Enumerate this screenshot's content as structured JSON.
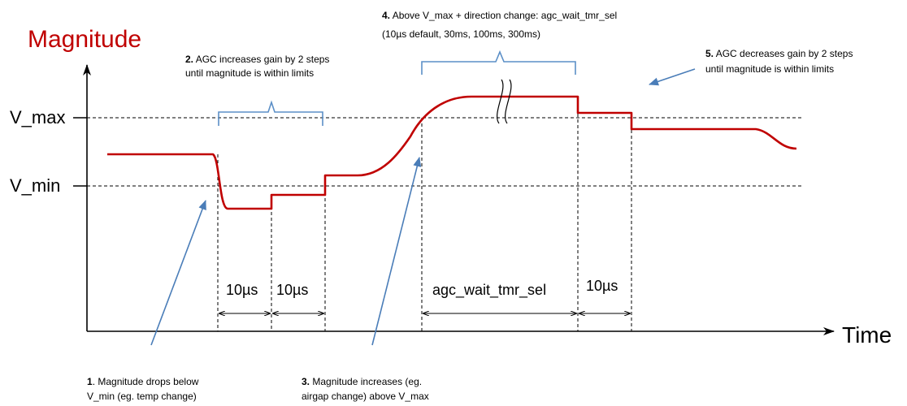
{
  "colors": {
    "signal": "#c00000",
    "brace": "#5b8fc7",
    "pointer": "#4a7db8",
    "title": "#c00000"
  },
  "axes": {
    "y_title": "Magnitude",
    "x_title": "Time",
    "vmax_label": "V_max",
    "vmin_label": "V_min"
  },
  "durations": {
    "d1": "10µs",
    "d2": "10µs",
    "d3": "agc_wait_tmr_sel",
    "d4": "10µs"
  },
  "notes": {
    "n1_num": "1",
    "n1_line1": ". Magnitude drops below",
    "n1_line2": "V_min (eg. temp change)",
    "n2_num": "2.",
    "n2_line1": " AGC increases gain by 2 steps",
    "n2_line2": "until magnitude is within limits",
    "n3_num": "3.",
    "n3_line1": " Magnitude increases (eg.",
    "n3_line2": "airgap change) above V_max",
    "n4_num": "4.",
    "n4_line1": " Above V_max + direction change: agc_wait_tmr_sel",
    "n4_line2": "(10µs default,  30ms, 100ms, 300ms)",
    "n5_num": "5.",
    "n5_line1": " AGC decreases gain by 2 steps",
    "n5_line2": "until magnitude is within limits"
  }
}
